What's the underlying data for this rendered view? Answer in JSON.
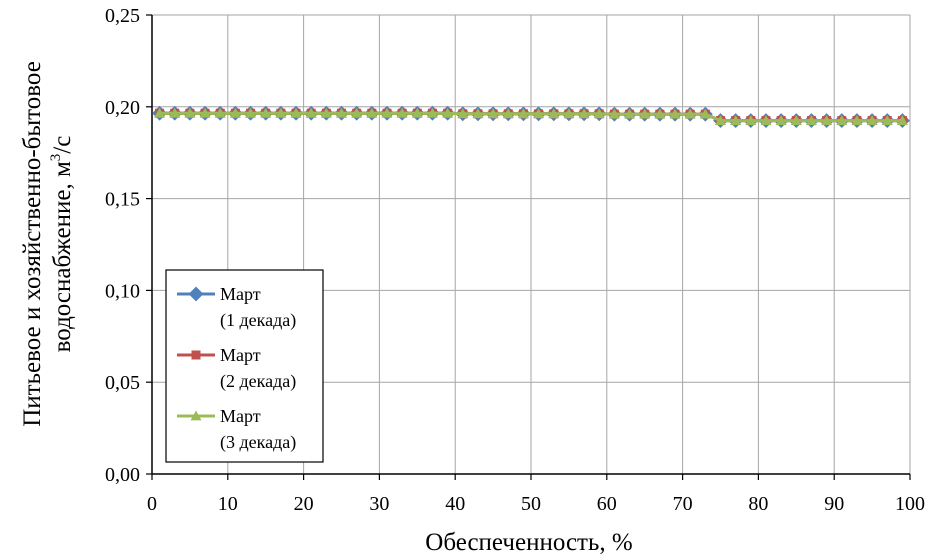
{
  "chart_data": {
    "type": "line",
    "title": "",
    "xlabel": "Обеспеченность, %",
    "ylabel_line1": "Питьевое и хозяйственно-бытовое",
    "ylabel_line2_text": "водоснабжение, м",
    "ylabel_line2_sup": "3",
    "ylabel_line2_tail": "/с",
    "xlim": [
      0,
      100
    ],
    "ylim": [
      0,
      0.25
    ],
    "x_ticks": [
      0,
      10,
      20,
      30,
      40,
      50,
      60,
      70,
      80,
      90,
      100
    ],
    "x_tick_labels": [
      "0",
      "10",
      "20",
      "30",
      "40",
      "50",
      "60",
      "70",
      "80",
      "90",
      "100"
    ],
    "y_ticks": [
      0,
      0.05,
      0.1,
      0.15,
      0.2,
      0.25
    ],
    "y_tick_labels": [
      "0,00",
      "0,05",
      "0,10",
      "0,15",
      "0,20",
      "0,25"
    ],
    "grid": true,
    "legend_position": "lower-left",
    "x": [
      1,
      3,
      5,
      7,
      9,
      11,
      13,
      15,
      17,
      19,
      21,
      23,
      25,
      27,
      29,
      31,
      33,
      35,
      37,
      39,
      41,
      43,
      45,
      47,
      49,
      51,
      53,
      55,
      57,
      59,
      61,
      63,
      65,
      67,
      69,
      71,
      73,
      75,
      77,
      79,
      81,
      83,
      85,
      87,
      89,
      91,
      93,
      95,
      97,
      99
    ],
    "series": [
      {
        "legend_line1": "Март",
        "legend_line2": "(1 декада)",
        "color": "#4f81bd",
        "marker": "diamond",
        "values": [
          0.1965,
          0.1965,
          0.1965,
          0.1965,
          0.1965,
          0.1965,
          0.1965,
          0.1965,
          0.1965,
          0.1965,
          0.1965,
          0.1965,
          0.1965,
          0.1965,
          0.1965,
          0.1965,
          0.1965,
          0.1965,
          0.1965,
          0.1965,
          0.1962,
          0.1962,
          0.1962,
          0.1962,
          0.1962,
          0.1962,
          0.1962,
          0.1962,
          0.1962,
          0.1962,
          0.196,
          0.196,
          0.196,
          0.196,
          0.196,
          0.196,
          0.196,
          0.1925,
          0.1925,
          0.1925,
          0.1925,
          0.1925,
          0.1925,
          0.1925,
          0.1925,
          0.1925,
          0.1925,
          0.1925,
          0.1925,
          0.1925
        ]
      },
      {
        "legend_line1": "Март",
        "legend_line2": "(2 декада)",
        "color": "#c0504d",
        "marker": "square",
        "values": [
          0.1965,
          0.1965,
          0.1965,
          0.1965,
          0.1965,
          0.1965,
          0.1965,
          0.1965,
          0.1965,
          0.1965,
          0.1965,
          0.1965,
          0.1965,
          0.1965,
          0.1965,
          0.1965,
          0.1965,
          0.1965,
          0.1965,
          0.1965,
          0.1962,
          0.1962,
          0.1962,
          0.1962,
          0.1962,
          0.1962,
          0.1962,
          0.1962,
          0.1962,
          0.1962,
          0.196,
          0.196,
          0.196,
          0.196,
          0.196,
          0.196,
          0.196,
          0.1925,
          0.1925,
          0.1925,
          0.1925,
          0.1925,
          0.1925,
          0.1925,
          0.1925,
          0.1925,
          0.1925,
          0.1925,
          0.1925,
          0.1925
        ]
      },
      {
        "legend_line1": "Март",
        "legend_line2": "(3 декада)",
        "color": "#9bbb59",
        "marker": "triangle",
        "values": [
          0.1965,
          0.1965,
          0.1965,
          0.1965,
          0.1965,
          0.1965,
          0.1965,
          0.1965,
          0.1965,
          0.1965,
          0.1965,
          0.1965,
          0.1965,
          0.1965,
          0.1965,
          0.1965,
          0.1965,
          0.1965,
          0.1965,
          0.1965,
          0.1962,
          0.1962,
          0.1962,
          0.1962,
          0.1962,
          0.1962,
          0.1962,
          0.1962,
          0.1962,
          0.1962,
          0.196,
          0.196,
          0.196,
          0.196,
          0.196,
          0.196,
          0.196,
          0.1925,
          0.1925,
          0.1925,
          0.1925,
          0.1925,
          0.1925,
          0.1925,
          0.1925,
          0.1925,
          0.1925,
          0.1925,
          0.1925,
          0.1925
        ]
      }
    ]
  }
}
